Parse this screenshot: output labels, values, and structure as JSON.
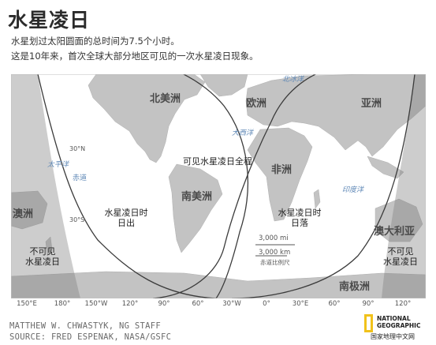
{
  "title": "水星凌日",
  "subtitle_lines": [
    "水星划过太阳圆面的总时间为7.5个小时。",
    "这是10年来，首次全球大部分地区可见的一次水星凌日现象。"
  ],
  "continents": {
    "north_america": "北美洲",
    "europe": "欧洲",
    "asia": "亚洲",
    "africa": "非洲",
    "south_america": "南美洲",
    "oceania": "澳洲",
    "australia": "澳大利亚",
    "antarctica": "南极洲"
  },
  "oceans": {
    "north_pacific": "太平洋",
    "atlantic": "大西洋",
    "arctic": "北冰洋",
    "indian": "印度洋"
  },
  "latitude_labels": {
    "n30": "30°N",
    "equator": "赤道",
    "s30": "30°S"
  },
  "zones": {
    "full_view": "可见水星凌日全程",
    "sunrise_line1": "水星凌日时",
    "sunrise_line2": "日出",
    "sunset_line1": "水星凌日时",
    "sunset_line2": "日落",
    "not_visible_w1": "不可见",
    "not_visible_w2": "水星凌日",
    "not_visible_e1": "不可见",
    "not_visible_e2": "水星凌日"
  },
  "scale": {
    "miles": "3,000 mi",
    "km": "3,000 km",
    "note": "赤道比例尺"
  },
  "longitude_ticks": [
    "150°E",
    "180°",
    "150°W",
    "120°",
    "90°",
    "60°",
    "30°W",
    "0°",
    "30°E",
    "60°",
    "90°",
    "120°"
  ],
  "credits": [
    "MATTHEW W. CHWASTYK, NG STAFF",
    "SOURCE: FRED ESPENAK, NASA/GSFC"
  ],
  "logo": {
    "line1": "NATIONAL",
    "line2": "GEOGRAPHIC",
    "cn": "国家地理中文网"
  },
  "colors": {
    "land": "#c3c3c3",
    "shade": "#8b8b8b",
    "ocean": "#ffffff",
    "logo_yellow": "#f1c21b"
  }
}
